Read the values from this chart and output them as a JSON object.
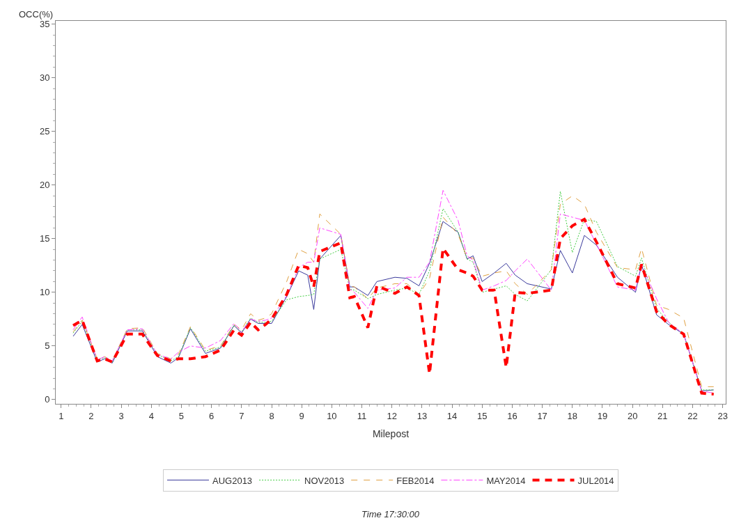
{
  "chart_data": {
    "type": "line",
    "xlabel": "Milepost",
    "ylabel": "OCC(%)",
    "x": [
      1.4,
      1.7,
      2.2,
      2.45,
      2.7,
      3.2,
      3.7,
      4.2,
      4.65,
      4.9,
      5.3,
      5.8,
      6.3,
      6.75,
      7.0,
      7.3,
      7.55,
      7.8,
      8.0,
      8.5,
      8.9,
      9.2,
      9.4,
      9.6,
      10.3,
      10.6,
      10.75,
      11.2,
      11.5,
      12.1,
      12.5,
      12.9,
      13.25,
      13.7,
      14.2,
      14.5,
      14.7,
      15.0,
      15.4,
      15.8,
      16.1,
      16.5,
      17.3,
      17.6,
      18.0,
      18.4,
      18.8,
      19.5,
      20.1,
      20.3,
      20.8,
      21.2,
      21.7,
      22.3,
      22.7
    ],
    "series": [
      {
        "name": "AUG2013",
        "color": "#3a3a9c",
        "line_style": "solid",
        "values": [
          5.9,
          7.0,
          3.5,
          3.8,
          3.4,
          6.4,
          6.4,
          4.0,
          3.4,
          3.9,
          6.6,
          4.3,
          4.8,
          6.9,
          6.2,
          7.5,
          7.1,
          7.1,
          7.1,
          9.6,
          12.0,
          11.6,
          8.4,
          13.1,
          15.3,
          10.5,
          10.5,
          9.7,
          11.0,
          11.4,
          11.3,
          10.6,
          12.7,
          16.6,
          15.6,
          13.1,
          13.4,
          11.0,
          11.8,
          12.7,
          11.6,
          10.8,
          10.3,
          13.9,
          11.8,
          15.3,
          14.4,
          11.4,
          10.0,
          12.6,
          7.9,
          7.0,
          6.1,
          0.8,
          0.9
        ]
      },
      {
        "name": "NOV2013",
        "color": "#44cc44",
        "line_style": "dotted",
        "values": [
          6.2,
          7.3,
          3.7,
          3.9,
          3.5,
          6.5,
          6.5,
          4.2,
          3.6,
          4.0,
          6.7,
          4.5,
          4.9,
          6.9,
          6.3,
          7.6,
          7.2,
          7.2,
          7.3,
          9.3,
          9.6,
          9.7,
          9.8,
          13.1,
          14.0,
          10.3,
          10.2,
          9.4,
          9.8,
          10.2,
          10.4,
          9.8,
          12.0,
          17.8,
          15.6,
          13.1,
          12.8,
          10.0,
          10.3,
          10.6,
          9.8,
          9.2,
          12.1,
          19.4,
          13.7,
          16.8,
          16.6,
          12.4,
          11.5,
          13.2,
          8.5,
          7.2,
          6.1,
          0.9,
          0.9
        ]
      },
      {
        "name": "FEB2014",
        "color": "#e0a040",
        "line_style": "dashed",
        "values": [
          6.3,
          7.4,
          3.8,
          4.0,
          3.6,
          6.6,
          6.7,
          4.3,
          3.8,
          4.2,
          6.8,
          4.6,
          5.0,
          7.0,
          6.5,
          8.0,
          7.4,
          7.6,
          8.0,
          11.0,
          14.0,
          13.6,
          12.8,
          17.3,
          15.4,
          10.6,
          10.5,
          9.4,
          10.4,
          10.8,
          10.8,
          9.8,
          11.3,
          17.0,
          15.4,
          13.2,
          13.2,
          11.5,
          11.8,
          12.0,
          10.8,
          9.8,
          12.1,
          18.2,
          19.0,
          18.2,
          15.6,
          12.3,
          12.1,
          14.1,
          8.8,
          8.4,
          7.6,
          1.2,
          1.2
        ]
      },
      {
        "name": "MAY2014",
        "color": "#ff44ff",
        "line_style": "dashdot",
        "values": [
          6.5,
          7.7,
          3.7,
          4.0,
          3.6,
          6.5,
          6.6,
          4.2,
          3.8,
          4.4,
          5.0,
          4.8,
          5.5,
          7.1,
          6.3,
          7.5,
          7.3,
          7.4,
          7.6,
          9.7,
          12.3,
          12.8,
          12.8,
          16.0,
          15.4,
          10.3,
          10.0,
          8.5,
          10.2,
          10.4,
          11.4,
          11.4,
          12.8,
          19.5,
          16.7,
          13.4,
          13.0,
          10.2,
          10.6,
          11.1,
          12.0,
          13.1,
          10.2,
          17.3,
          17.0,
          16.7,
          14.5,
          10.5,
          10.2,
          12.6,
          9.4,
          7.2,
          6.1,
          0.8,
          0.6
        ]
      },
      {
        "name": "JUL2014",
        "color": "#ff0000",
        "line_style": "dashed",
        "values": [
          6.9,
          7.4,
          3.6,
          3.8,
          3.5,
          6.1,
          6.1,
          4.1,
          3.6,
          3.8,
          3.8,
          4.0,
          4.6,
          6.5,
          6.0,
          7.2,
          6.5,
          7.0,
          7.5,
          9.8,
          12.5,
          12.3,
          10.5,
          13.8,
          14.6,
          9.5,
          9.6,
          6.7,
          10.6,
          9.9,
          10.5,
          9.7,
          2.4,
          14.1,
          12.1,
          11.8,
          11.5,
          10.2,
          10.2,
          3.0,
          10.0,
          9.9,
          10.2,
          15.0,
          16.2,
          16.8,
          14.7,
          10.8,
          10.4,
          12.6,
          8.2,
          7.0,
          6.1,
          0.6,
          0.5
        ]
      }
    ],
    "xlim": [
      0.82,
      23.1
    ],
    "xticks": [
      1,
      2,
      3,
      4,
      5,
      6,
      7,
      8,
      9,
      10,
      11,
      12,
      13,
      14,
      15,
      16,
      17,
      18,
      19,
      20,
      21,
      22,
      23
    ],
    "ylim": [
      -0.4,
      35.3
    ],
    "yticks": [
      0,
      5,
      10,
      15,
      20,
      25,
      30,
      35
    ],
    "legend": "bottom",
    "marker": "none",
    "annotations": [
      "Time 17:30:00"
    ]
  }
}
